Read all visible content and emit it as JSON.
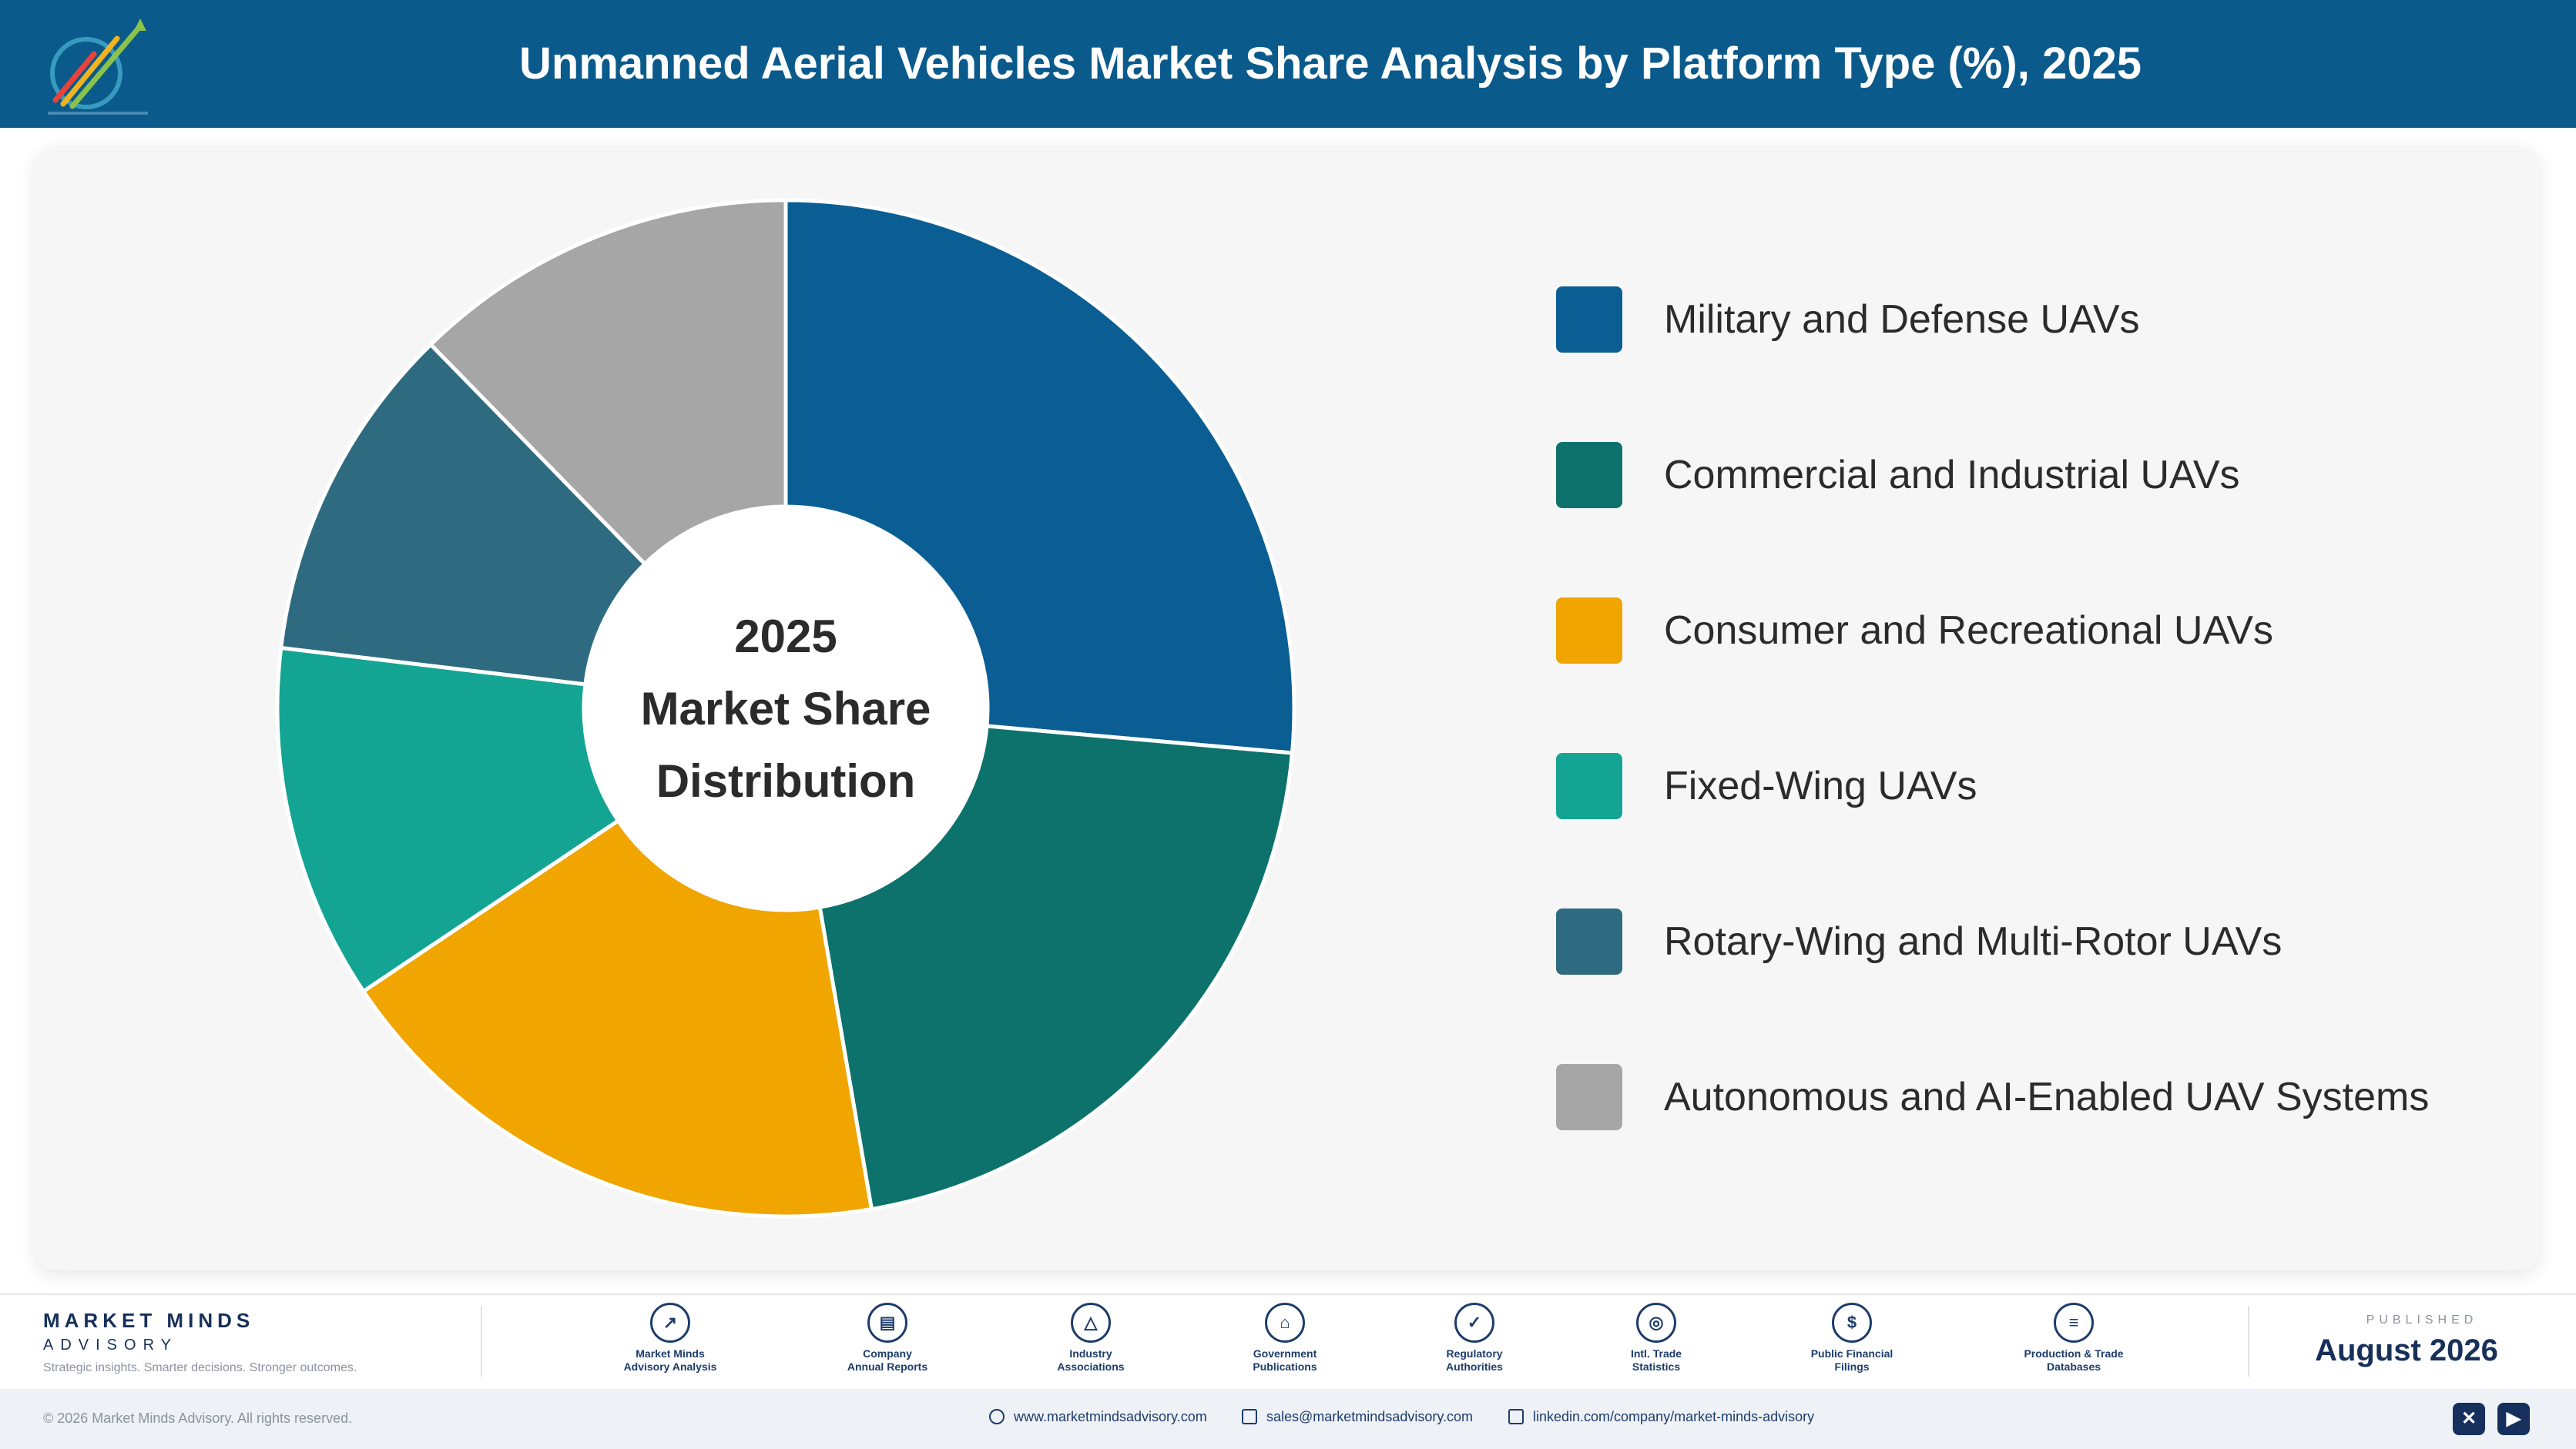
{
  "header": {
    "title": "Unmanned Aerial Vehicles Market Share Analysis by Platform Type (%), 2025"
  },
  "chart_data": {
    "type": "pie",
    "title": "Unmanned Aerial Vehicles Market Share Analysis by Platform Type (%), 2025",
    "center_label": [
      "2025",
      "Market Share",
      "Distribution"
    ],
    "legend_position": "right",
    "categories": [
      "Military and Defense UAVs",
      "Commercial and Industrial UAVs",
      "Consumer and Recreational UAVs",
      "Fixed-Wing UAVs",
      "Rotary-Wing and Multi-Rotor UAVs",
      "Autonomous and AI-Enabled UAV Systems"
    ],
    "values": [
      26.4,
      20.9,
      18.3,
      11.3,
      10.8,
      12.3
    ],
    "colors": [
      "#0a5e94",
      "#0d726c",
      "#f0a500",
      "#14a493",
      "#2f6b80",
      "#a6a6a6"
    ]
  },
  "footer": {
    "brand_name": "MARKET MINDS",
    "brand_sub": "ADVISORY",
    "tagline": "Strategic insights. Smarter decisions. Stronger outcomes.",
    "sources": [
      {
        "line1": "Market Minds",
        "line2": "Advisory Analysis",
        "icon": "trend-line-icon"
      },
      {
        "line1": "Company",
        "line2": "Annual Reports",
        "icon": "document-icon"
      },
      {
        "line1": "Industry",
        "line2": "Associations",
        "icon": "network-icon"
      },
      {
        "line1": "Government",
        "line2": "Publications",
        "icon": "government-building-icon"
      },
      {
        "line1": "Regulatory",
        "line2": "Authorities",
        "icon": "shield-check-icon"
      },
      {
        "line1": "Intl. Trade",
        "line2": "Statistics",
        "icon": "globe-icon"
      },
      {
        "line1": "Public Financial",
        "line2": "Filings",
        "icon": "dollar-coin-icon"
      },
      {
        "line1": "Production & Trade",
        "line2": "Databases",
        "icon": "database-icon"
      }
    ],
    "published_label": "PUBLISHED",
    "published_date": "August 2026"
  },
  "bottom": {
    "copyright": "© 2026 Market Minds Advisory. All rights reserved.",
    "website": "www.marketmindsadvisory.com",
    "email": "sales@marketmindsadvisory.com",
    "linkedin": "linkedin.com/company/market-minds-advisory"
  }
}
